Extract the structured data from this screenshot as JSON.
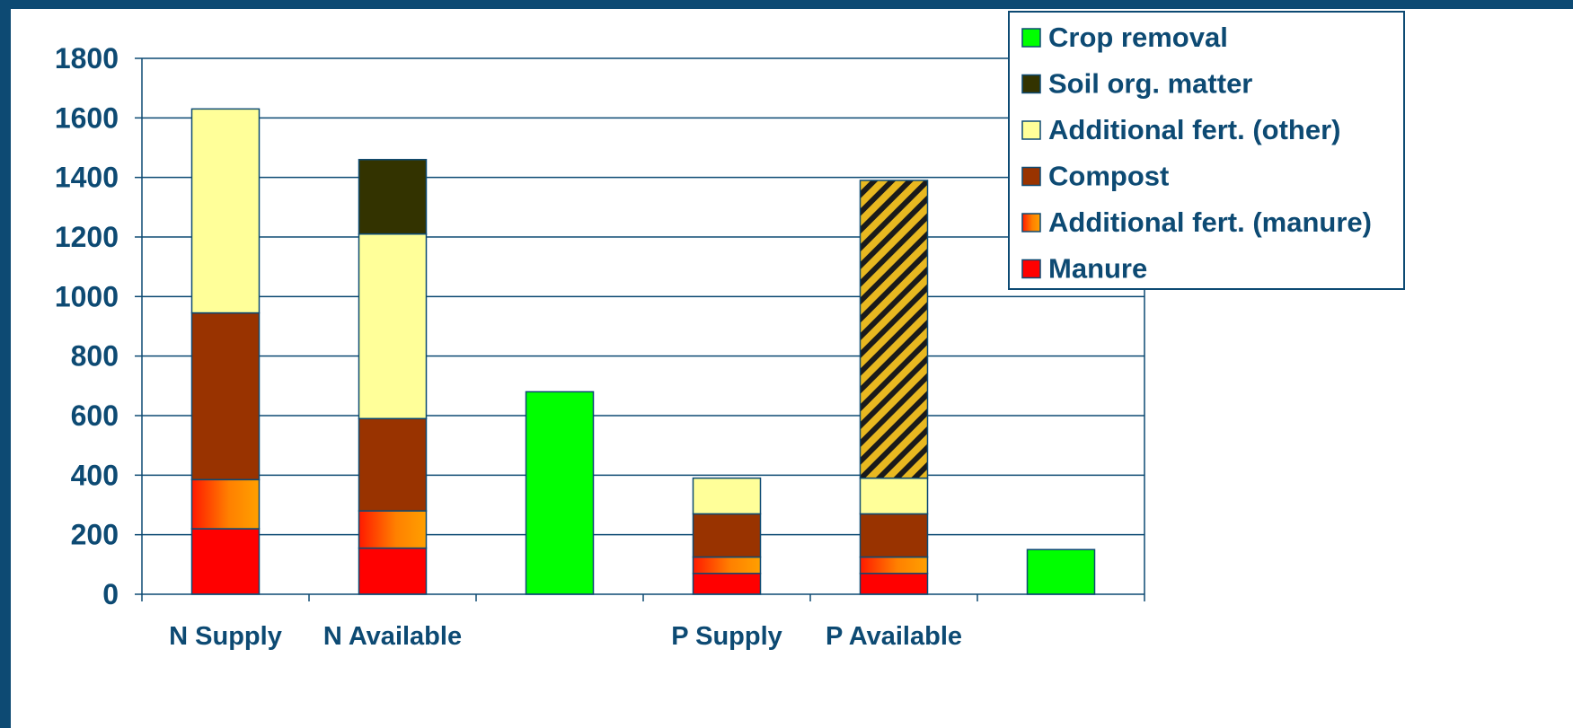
{
  "chart_data": {
    "type": "bar",
    "stacked": true,
    "categories": [
      "N Supply",
      "N Available",
      "",
      "P Supply",
      "P Available",
      ""
    ],
    "ylim": [
      0,
      1800
    ],
    "yticks": [
      0,
      200,
      400,
      600,
      800,
      1000,
      1200,
      1400,
      1600,
      1800
    ],
    "grid": true,
    "legend_position": "top-right",
    "series": [
      {
        "name": "Manure",
        "color": "#ff0000",
        "fill": "gradient-red",
        "values": [
          220,
          155,
          0,
          70,
          70,
          0
        ]
      },
      {
        "name": "Additional fert. (manure)",
        "color": "#ff9900",
        "fill": "gradient-red-orange",
        "values": [
          165,
          125,
          0,
          55,
          55,
          0
        ]
      },
      {
        "name": "Compost",
        "color": "#993300",
        "fill": "solid",
        "values": [
          560,
          310,
          0,
          145,
          145,
          0
        ]
      },
      {
        "name": "Additional fert. (other)",
        "color": "#ffff99",
        "fill": "solid",
        "values": [
          685,
          620,
          0,
          120,
          120,
          0
        ]
      },
      {
        "name": "",
        "color": "#e8b820",
        "fill": "hatch-yellow-black",
        "values": [
          0,
          0,
          0,
          0,
          1000,
          0
        ]
      },
      {
        "name": "Soil org. matter",
        "color": "#333300",
        "fill": "solid",
        "values": [
          0,
          250,
          0,
          0,
          0,
          0
        ]
      },
      {
        "name": "Crop removal",
        "color": "#00ff00",
        "fill": "solid",
        "values": [
          0,
          0,
          680,
          0,
          0,
          150
        ]
      }
    ],
    "legend_order": [
      "Crop removal",
      "Soil org. matter",
      "Additional fert. (other)",
      "Compost",
      "Additional fert. (manure)",
      "Manure"
    ]
  }
}
